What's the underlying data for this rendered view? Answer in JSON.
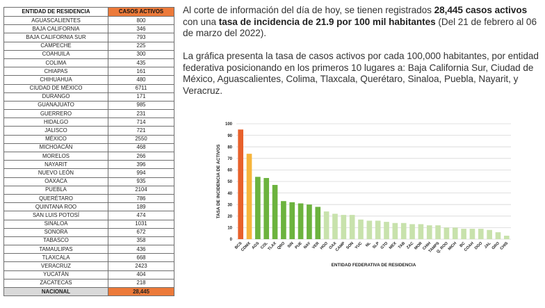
{
  "table": {
    "header": [
      "ENTIDAD DE RESIDENCIA",
      "CASOS ACTIVOS"
    ],
    "rows": [
      [
        "AGUASCALIENTES",
        "800"
      ],
      [
        "BAJA CALIFORNIA",
        "346"
      ],
      [
        "BAJA CALIFORNIA SUR",
        "793"
      ],
      [
        "CAMPECHE",
        "225"
      ],
      [
        "COAHUILA",
        "300"
      ],
      [
        "COLIMA",
        "435"
      ],
      [
        "CHIAPAS",
        "161"
      ],
      [
        "CHIHUAHUA",
        "480"
      ],
      [
        "CIUDAD DE MÉXICO",
        "6711"
      ],
      [
        "DURANGO",
        "171"
      ],
      [
        "GUANAJUATO",
        "985"
      ],
      [
        "GUERRERO",
        "231"
      ],
      [
        "HIDALGO",
        "714"
      ],
      [
        "JALISCO",
        "721"
      ],
      [
        "MÉXICO",
        "2550"
      ],
      [
        "MICHOACÁN",
        "468"
      ],
      [
        "MORELOS",
        "266"
      ],
      [
        "NAYARIT",
        "396"
      ],
      [
        "NUEVO LEÓN",
        "994"
      ],
      [
        "OAXACA",
        "935"
      ],
      [
        "PUEBLA",
        "2104"
      ],
      [
        "QUERÉTARO",
        "786"
      ],
      [
        "QUINTANA ROO",
        "189"
      ],
      [
        "SAN LUIS POTOSÍ",
        "474"
      ],
      [
        "SINALOA",
        "1031"
      ],
      [
        "SONORA",
        "672"
      ],
      [
        "TABASCO",
        "358"
      ],
      [
        "TAMAULIPAS",
        "436"
      ],
      [
        "TLAXCALA",
        "668"
      ],
      [
        "VERACRUZ",
        "2423"
      ],
      [
        "YUCATÁN",
        "404"
      ],
      [
        "ZACATECAS",
        "218"
      ]
    ],
    "total": [
      "NACIONAL",
      "28,445"
    ]
  },
  "text": {
    "p1_a": "Al corte de información del día de hoy, se tienen registrados ",
    "p1_b": "28,445 casos activos",
    "p1_c": " con una ",
    "p1_d": "tasa de incidencia de 21.9 por 100 mil habitantes",
    "p1_e": " (Del 21 de febrero al 06 de marzo del 2022).",
    "p2": "La gráfica presenta la tasa de casos activos por cada 100,000 habitantes, por entidad federativa posicionando en los primeros 10 lugares a: Baja California Sur, Ciudad de México, Aguascalientes, Colima, Tlaxcala, Querétaro, Sinaloa, Puebla, Nayarit, y Veracruz."
  },
  "chart_data": {
    "type": "bar",
    "xlabel": "ENTIDAD FEDERATIVA DE RESIDENCIA",
    "ylabel": "TASA DE INCIDENCIA DE ACTIVOS",
    "ylim": [
      0,
      100
    ],
    "yticks": [
      0,
      10,
      20,
      30,
      40,
      50,
      60,
      70,
      80,
      90,
      100
    ],
    "grid": true,
    "categories": [
      "BCS",
      "CDMX",
      "AGS",
      "COL",
      "TLAX",
      "QRO",
      "SIN",
      "PUE",
      "NAY",
      "VER",
      "HGO",
      "OAX",
      "CAMP",
      "SON",
      "YUC",
      "NL",
      "SLP",
      "GTO",
      "MEX",
      "TAB",
      "ZAC",
      "MOR",
      "CHIH",
      "TAMPS",
      "Q. ROO",
      "MICH",
      "BC",
      "COAH",
      "DGO",
      "JAL",
      "GRO",
      "CHIS"
    ],
    "values": [
      95,
      74,
      54,
      53,
      47,
      33,
      32,
      31,
      30,
      28,
      24,
      22,
      21,
      21,
      17,
      16,
      16,
      15,
      14,
      14,
      13,
      13,
      12,
      12,
      10,
      10,
      9,
      9,
      9,
      8,
      6,
      3
    ],
    "colors": {
      "first": "#e8612c",
      "second": "#f6b53c",
      "top10": "#6cb33e",
      "rest": "#c8e2ac",
      "grid": "#d6d6d6"
    }
  }
}
